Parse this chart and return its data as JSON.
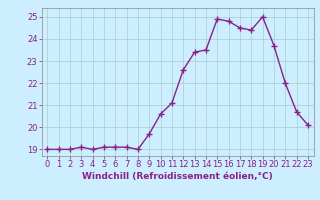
{
  "x": [
    0,
    1,
    2,
    3,
    4,
    5,
    6,
    7,
    8,
    9,
    10,
    11,
    12,
    13,
    14,
    15,
    16,
    17,
    18,
    19,
    20,
    21,
    22,
    23
  ],
  "y": [
    19.0,
    19.0,
    19.0,
    19.1,
    19.0,
    19.1,
    19.1,
    19.1,
    19.0,
    19.7,
    20.6,
    21.1,
    22.6,
    23.4,
    23.5,
    24.9,
    24.8,
    24.5,
    24.4,
    25.0,
    23.7,
    22.0,
    20.7,
    20.1
  ],
  "line_color": "#882288",
  "marker": "+",
  "marker_size": 4,
  "linewidth": 1.0,
  "bg_color": "#cceeff",
  "grid_color": "#aacccc",
  "xlabel": "Windchill (Refroidissement éolien,°C)",
  "xlabel_color": "#882288",
  "tick_color": "#882288",
  "ylim": [
    18.7,
    25.4
  ],
  "xlim": [
    -0.5,
    23.5
  ],
  "yticks": [
    19,
    20,
    21,
    22,
    23,
    24,
    25
  ],
  "xticks": [
    0,
    1,
    2,
    3,
    4,
    5,
    6,
    7,
    8,
    9,
    10,
    11,
    12,
    13,
    14,
    15,
    16,
    17,
    18,
    19,
    20,
    21,
    22,
    23
  ],
  "xlabel_fontsize": 6.5,
  "tick_fontsize": 6.0
}
